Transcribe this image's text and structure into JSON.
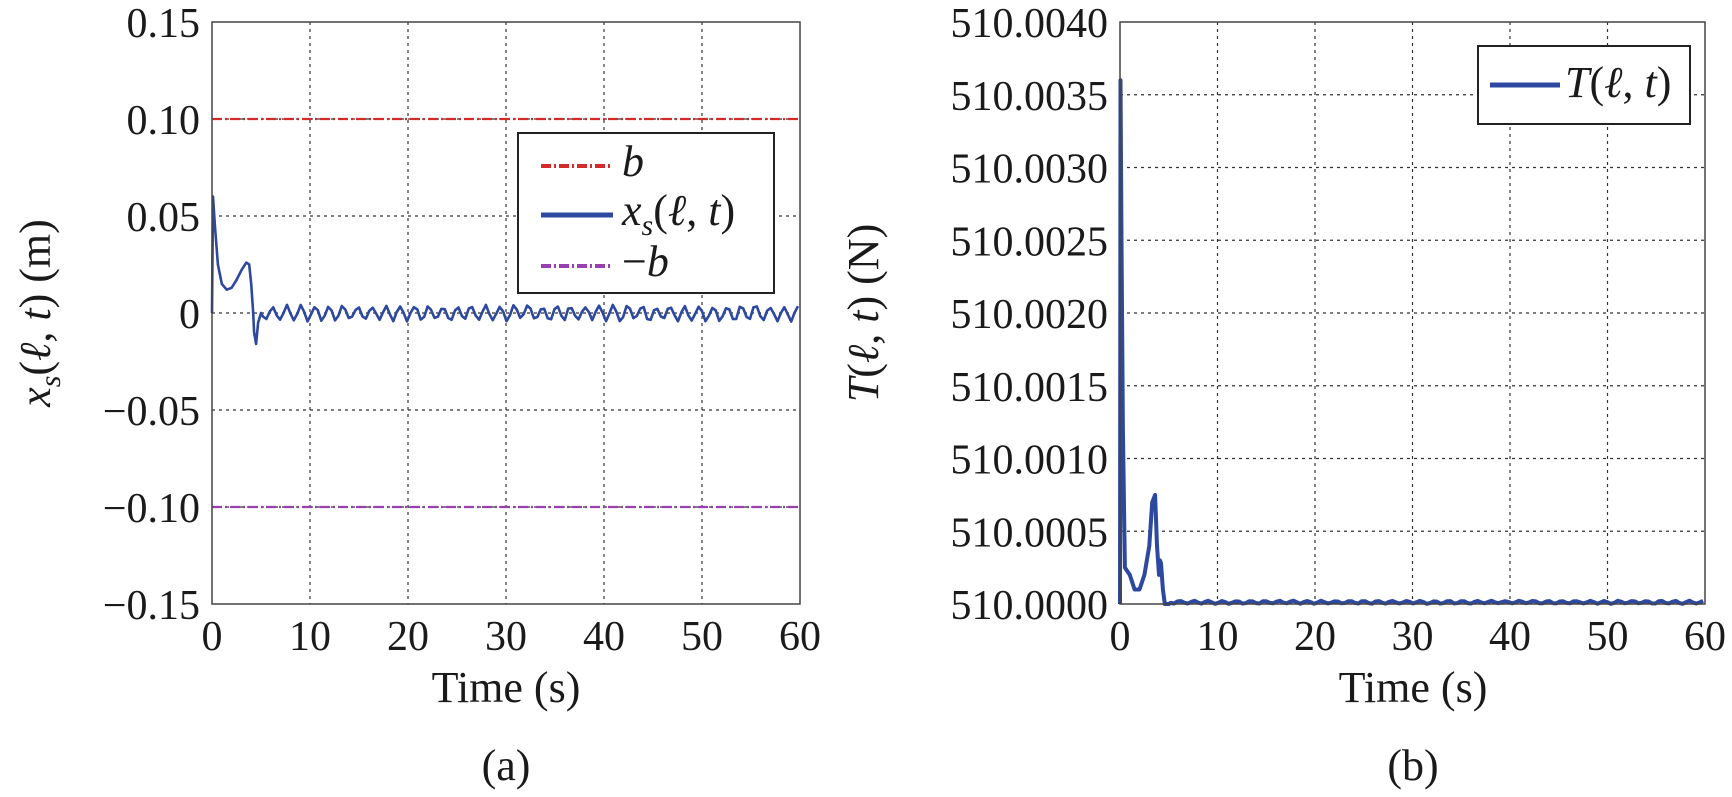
{
  "chart_data": [
    {
      "type": "line",
      "panel_label": "(a)",
      "xlabel": "Time (s)",
      "ylabel": "x_s(ℓ, t) (m)",
      "xlim": [
        0,
        60
      ],
      "ylim": [
        -0.15,
        0.15
      ],
      "x_ticks": [
        "0",
        "10",
        "20",
        "30",
        "40",
        "50",
        "60"
      ],
      "y_ticks": [
        "−0.15",
        "−0.10",
        "−0.05",
        "0",
        "0.05",
        "0.10",
        "0.15"
      ],
      "grid": true,
      "legend_position": "top-right",
      "series": [
        {
          "name": "b",
          "color": "#d42a2a",
          "style": "dash-dot",
          "x": [
            0,
            60
          ],
          "y": [
            0.1,
            0.1
          ]
        },
        {
          "name": "x_s(ℓ, t)",
          "color": "#2c48a0",
          "style": "solid",
          "x": [
            0,
            0.1,
            0.3,
            0.6,
            1.0,
            1.5,
            2.0,
            2.5,
            3.0,
            3.5,
            3.8,
            4.0,
            4.2,
            4.3,
            4.5,
            4.7,
            5.0,
            5.5,
            6.0,
            6.5,
            7.0,
            7.5,
            8.0,
            8.5,
            9.0,
            10,
            15,
            20,
            25,
            30,
            35,
            40,
            45,
            50,
            55,
            60
          ],
          "y": [
            0,
            0.06,
            0.045,
            0.025,
            0.015,
            0.012,
            0.013,
            0.017,
            0.022,
            0.026,
            0.025,
            0.015,
            0.0,
            -0.01,
            -0.016,
            -0.005,
            0.0,
            -0.002,
            0.001,
            0.0,
            -0.002,
            0.002,
            0.004,
            0.0,
            -0.003,
            0.002,
            0.0,
            0.001,
            0.0,
            0.001,
            0.0,
            0.0,
            0.001,
            0.0,
            0.001,
            0.0
          ]
        },
        {
          "name": "−b",
          "color": "#9a3fb0",
          "style": "dash-dot",
          "x": [
            0,
            60
          ],
          "y": [
            -0.1,
            -0.1
          ]
        }
      ],
      "oscillation_amplitude_after_5s": 0.004
    },
    {
      "type": "line",
      "panel_label": "(b)",
      "xlabel": "Time (s)",
      "ylabel": "T(ℓ, t) (N)",
      "xlim": [
        0,
        60
      ],
      "ylim": [
        510.0,
        510.004
      ],
      "x_ticks": [
        "0",
        "10",
        "20",
        "30",
        "40",
        "50",
        "60"
      ],
      "y_ticks": [
        "510.0000",
        "510.0005",
        "510.0010",
        "510.0015",
        "510.0020",
        "510.0025",
        "510.0030",
        "510.0035",
        "510.0040"
      ],
      "grid": true,
      "legend_position": "top-right",
      "series": [
        {
          "name": "T(ℓ, t)",
          "color": "#2c48a0",
          "style": "solid",
          "x": [
            0,
            0.05,
            0.15,
            0.3,
            0.5,
            1.0,
            1.5,
            2.0,
            2.5,
            3.0,
            3.3,
            3.6,
            3.8,
            4.0,
            4.1,
            4.2,
            4.4,
            4.6,
            5.0,
            6.0,
            7.0,
            8.0,
            9.0,
            10,
            20,
            30,
            40,
            50,
            60
          ],
          "y": [
            510.0,
            510.0036,
            510.0025,
            510.0012,
            510.00025,
            510.0002,
            510.0001,
            510.0001,
            510.0002,
            510.0004,
            510.0007,
            510.00075,
            510.0004,
            510.0002,
            510.0003,
            510.00028,
            510.0001,
            510.0,
            510.0,
            510.0,
            510.00002,
            510.00003,
            510.00001,
            510.00002,
            510.00002,
            510.00002,
            510.00002,
            510.00002,
            510.00002
          ]
        }
      ],
      "oscillation_amplitude_after_5s": 2e-05
    }
  ]
}
